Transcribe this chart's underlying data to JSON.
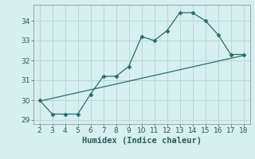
{
  "x": [
    2,
    3,
    4,
    5,
    6,
    7,
    8,
    9,
    10,
    11,
    12,
    13,
    14,
    15,
    16,
    17,
    18
  ],
  "y": [
    30.0,
    29.3,
    29.3,
    29.3,
    30.3,
    31.2,
    31.2,
    31.7,
    33.2,
    33.0,
    33.5,
    34.4,
    34.4,
    34.0,
    33.3,
    32.3,
    32.3
  ],
  "line_color": "#2d6b6b",
  "marker": "D",
  "marker_size": 2.5,
  "xlabel": "Humidex (Indice chaleur)",
  "xlim": [
    1.5,
    18.5
  ],
  "ylim": [
    28.8,
    34.8
  ],
  "yticks": [
    29,
    30,
    31,
    32,
    33,
    34
  ],
  "xticks": [
    2,
    3,
    4,
    5,
    6,
    7,
    8,
    9,
    10,
    11,
    12,
    13,
    14,
    15,
    16,
    17,
    18
  ],
  "background_color": "#d6efef",
  "grid_color": "#b8d8d8",
  "tick_fontsize": 6.5,
  "xlabel_fontsize": 7.5,
  "trend_x": [
    2,
    18
  ],
  "trend_y": [
    29.95,
    32.25
  ]
}
